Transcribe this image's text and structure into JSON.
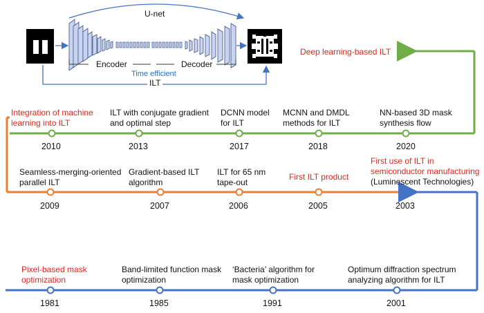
{
  "unet": {
    "title": "U-net",
    "encoder": "Encoder",
    "decoder": "Decoder",
    "time_efficient": "Time efficient",
    "ilt": "ILT"
  },
  "colors": {
    "blue": "#4472c4",
    "orange": "#ed7d31",
    "green": "#70ad47",
    "red_text": "#e0261f"
  },
  "timeline": {
    "green_row": [
      {
        "year": "2010",
        "label": "Integration of machine learning into ILT",
        "highlight": true
      },
      {
        "year": "2013",
        "label": "ILT with conjugate gradient and optimal step",
        "highlight": false
      },
      {
        "year": "2017",
        "label": "DCNN model for ILT",
        "highlight": false
      },
      {
        "year": "2018",
        "label": "MCNN and DMDL methods for ILT",
        "highlight": false
      },
      {
        "year": "2020",
        "label": "NN-based 3D mask synthesis flow",
        "highlight": false
      }
    ],
    "green_end_label": "Deep learning-based ILT",
    "orange_row": [
      {
        "year": "2003",
        "label": "First use of ILT in semiconductor manufacturing",
        "sub": "(Luminescent Technologies)",
        "highlight": true
      },
      {
        "year": "2005",
        "label": "First ILT product",
        "highlight": true
      },
      {
        "year": "2006",
        "label": "ILT for 65 nm tape-out",
        "highlight": false
      },
      {
        "year": "2007",
        "label": "Gradient-based ILT algorithm",
        "highlight": false
      },
      {
        "year": "2009",
        "label": "Seamless-merging-oriented parallel ILT",
        "highlight": false
      }
    ],
    "blue_row": [
      {
        "year": "1981",
        "label": "Pixel-based mask optimization",
        "highlight": true
      },
      {
        "year": "1985",
        "label": "Band-limited function mask optimization",
        "highlight": false
      },
      {
        "year": "1991",
        "label": "‘Bacteria’ algorithm for mask optimization",
        "highlight": false
      },
      {
        "year": "2001",
        "label": "Optimum diffraction spectrum analyzing algorithm for ILT",
        "highlight": false
      }
    ]
  }
}
